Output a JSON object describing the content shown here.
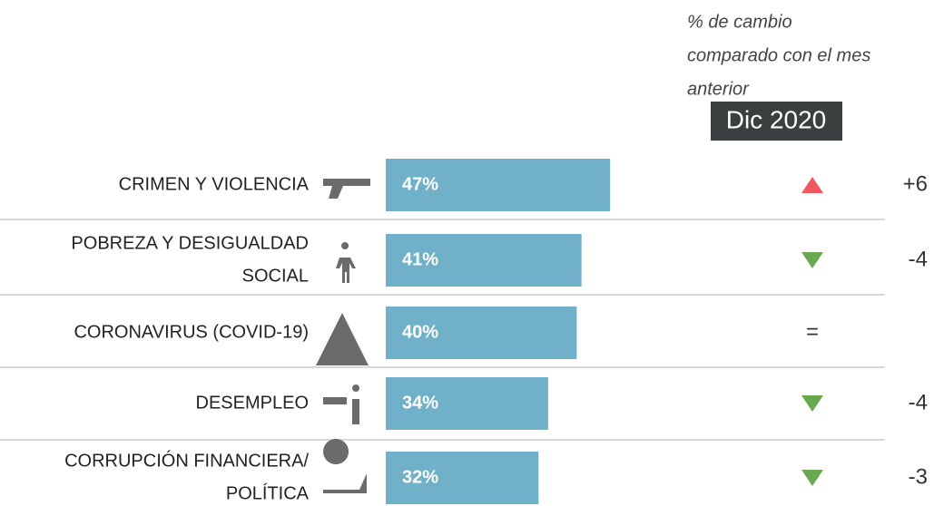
{
  "chart_data": {
    "type": "bar",
    "subtitle": [
      "% de cambio",
      "comparado con el mes",
      "anterior"
    ],
    "period": "Dic 2020",
    "categories": [
      [
        "CRIMEN Y VIOLENCIA"
      ],
      [
        "POBREZA Y DESIGUALDAD",
        "SOCIAL"
      ],
      [
        "CORONAVIRUS (COVID-19)"
      ],
      [
        "DESEMPLEO"
      ],
      [
        "CORRUPCIÓN FINANCIERA/",
        "POLÍTICA"
      ]
    ],
    "values": [
      47,
      41,
      40,
      34,
      32
    ],
    "value_labels": [
      "47%",
      "41%",
      "40%",
      "34%",
      "32%"
    ],
    "changes": [
      6,
      -4,
      0,
      -4,
      -3
    ],
    "change_labels": [
      "+6",
      "-4",
      "=",
      "-4",
      "-3"
    ],
    "color": "#70b0c8",
    "up_color": "#f0575f",
    "down_color": "#6aa84f"
  }
}
